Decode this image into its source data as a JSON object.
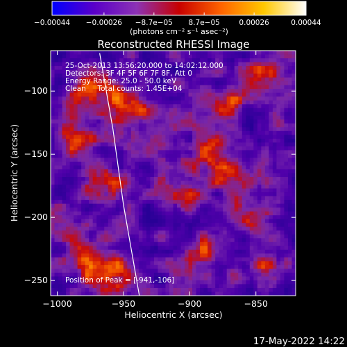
{
  "chart_data": {
    "type": "heatmap",
    "title": "Reconstructed RHESSI Image",
    "xlabel": "Heliocentric X (arcsec)",
    "ylabel": "Heliocentric Y (arcsec)",
    "xlim": [
      -1005,
      -820
    ],
    "ylim": [
      -262,
      -68
    ],
    "x_ticks": [
      -1000,
      -950,
      -900,
      -850
    ],
    "x_tick_labels": [
      "−1000",
      "−950",
      "−900",
      "−850"
    ],
    "y_ticks": [
      -100,
      -150,
      -200,
      -250
    ],
    "y_tick_labels": [
      "−100",
      "−150",
      "−200",
      "−250"
    ],
    "colorbar": {
      "range": [
        -0.00044,
        0.00044
      ],
      "ticks": [
        -0.00044,
        -0.00026,
        -8.7e-05,
        8.7e-05,
        0.00026,
        0.00044
      ],
      "tick_labels": [
        "−0.00044",
        "−0.00026",
        "−8.7e−05",
        "8.7e−05",
        "0.00026",
        "0.00044"
      ],
      "unit_label": "(photons cm⁻² s⁻¹ asec⁻²)",
      "colors": [
        "#0000ff",
        "#5a00c8",
        "#8c32b4",
        "#c80000",
        "#ff6400",
        "#ffc800",
        "#ffffff"
      ]
    },
    "annotations": [
      "25-Oct-2013 13:56:20.000 to 14:02:12.000",
      "Detectors: 3F 4F 5F 6F 7F 8F, Att 0",
      "Energy Range: 25.0 - 50.0 keV",
      "Clean     Total counts: 1.45E+04"
    ],
    "peak_label": "Position of Peak = [-941,-106]",
    "peak": [
      -941,
      -106
    ],
    "limb_curve": [
      [
        -968,
        -70
      ],
      [
        -958,
        -130
      ],
      [
        -950,
        -190
      ],
      [
        -938,
        -262
      ]
    ],
    "bright_sources": [
      {
        "x": -945,
        "y": -110,
        "value": 1.0
      },
      {
        "x": -975,
        "y": -100,
        "value": 0.85
      },
      {
        "x": -965,
        "y": -175,
        "value": 0.85
      },
      {
        "x": -990,
        "y": -135,
        "value": 0.7
      },
      {
        "x": -925,
        "y": -140,
        "value": 0.6
      },
      {
        "x": -890,
        "y": -150,
        "value": 0.65
      },
      {
        "x": -845,
        "y": -85,
        "value": 0.6
      },
      {
        "x": -870,
        "y": -110,
        "value": 0.55
      },
      {
        "x": -890,
        "y": -230,
        "value": 0.7
      },
      {
        "x": -850,
        "y": -200,
        "value": 0.65
      },
      {
        "x": -910,
        "y": -180,
        "value": 0.55
      },
      {
        "x": -980,
        "y": -230,
        "value": 0.75
      },
      {
        "x": -960,
        "y": -245,
        "value": 0.8
      },
      {
        "x": -1000,
        "y": -205,
        "value": 0.65
      },
      {
        "x": -840,
        "y": -240,
        "value": 0.6
      },
      {
        "x": -870,
        "y": -170,
        "value": 0.55
      }
    ]
  },
  "footer": {
    "timestamp": "17-May-2022 14:22"
  }
}
